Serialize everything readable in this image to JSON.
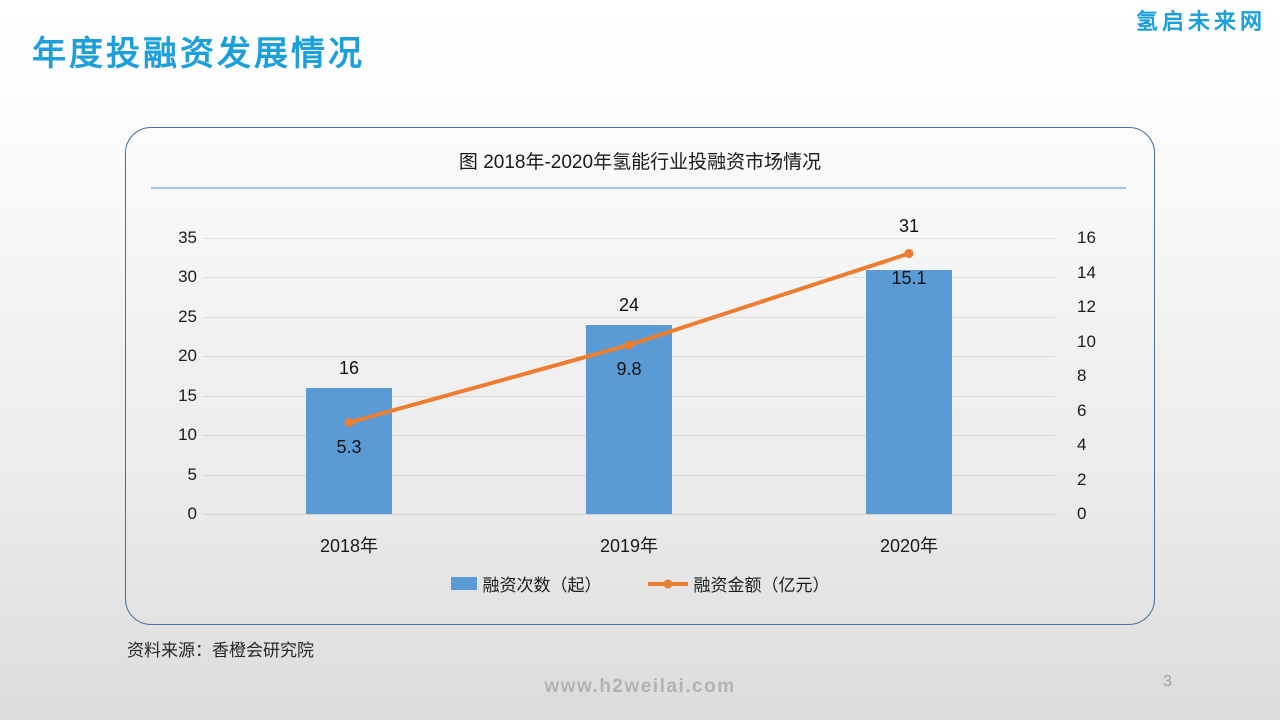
{
  "page": {
    "title": "年度投融资发展情况",
    "logo": "氢启未来网",
    "source": "资料来源：香橙会研究院",
    "footer_url": "www.h2weilai.com",
    "page_number": "3"
  },
  "colors": {
    "accent_title": "#1C9FDB",
    "bar": "#5B9BD5",
    "line": "#ED7D31",
    "panel_border": "#41719C",
    "divider": "#9DC3E6",
    "footer_gray": "#b2b2b2"
  },
  "chart_data": {
    "type": "bar",
    "subtype": "combo-bar-line",
    "title": "图 2018年-2020年氢能行业投融资市场情况",
    "categories": [
      "2018年",
      "2019年",
      "2020年"
    ],
    "series": [
      {
        "name": "融资次数（起）",
        "type": "bar",
        "axis": "left",
        "color": "#5B9BD5",
        "values": [
          16,
          24,
          31
        ]
      },
      {
        "name": "融资金额（亿元）",
        "type": "line",
        "axis": "right",
        "color": "#ED7D31",
        "values": [
          5.3,
          9.8,
          15.1
        ]
      }
    ],
    "left_axis": {
      "min": 0,
      "max": 35,
      "ticks": [
        0,
        5,
        10,
        15,
        20,
        25,
        30,
        35
      ]
    },
    "right_axis": {
      "min": 0,
      "max": 16,
      "ticks": [
        0,
        2,
        4,
        6,
        8,
        10,
        12,
        14,
        16
      ]
    },
    "grid": true,
    "legend_position": "bottom"
  }
}
